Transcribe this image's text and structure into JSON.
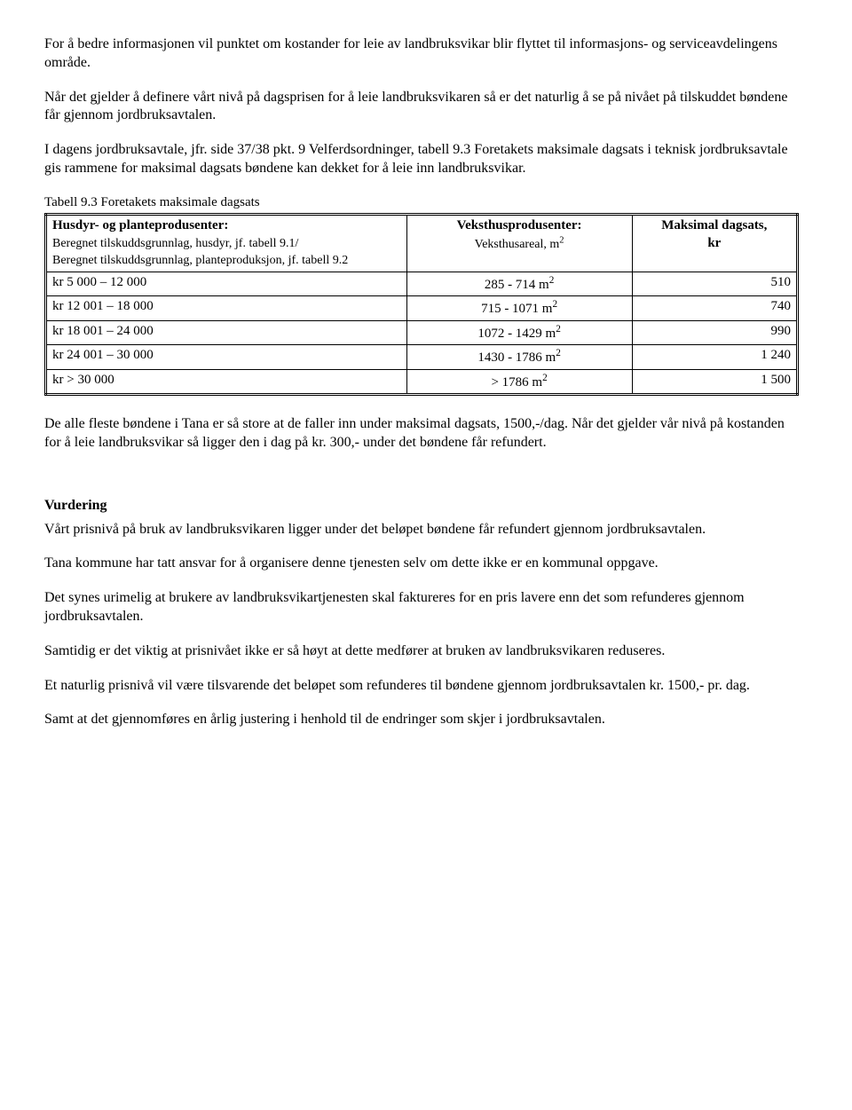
{
  "paragraphs": {
    "p1": "For å bedre informasjonen vil punktet om kostander for leie av landbruksvikar blir flyttet til informasjons- og serviceavdelingens område.",
    "p2": "Når det gjelder å definere vårt nivå på dagsprisen for å leie landbruksvikaren så er det naturlig å se på nivået på tilskuddet bøndene får gjennom jordbruksavtalen.",
    "p3": "I dagens jordbruksavtale, jfr. side 37/38  pkt. 9 Velferdsordninger, tabell 9.3 Foretakets maksimale  dagsats i  teknisk jordbruksavtale gis rammene for maksimal dagsats bøndene kan dekket for å leie inn landbruksvikar.",
    "p4": "De alle fleste bøndene i Tana er så store at de faller inn under maksimal dagsats, 1500,-/dag. Når det gjelder vår nivå på kostanden for å leie landbruksvikar så ligger den i dag på kr. 300,- under det bøndene får refundert.",
    "vurdering_heading": "Vurdering",
    "v1": "Vårt prisnivå på bruk av landbruksvikaren ligger under det beløpet bøndene får refundert gjennom jordbruksavtalen.",
    "v2": "Tana kommune har tatt ansvar for å organisere denne tjenesten selv om dette ikke er en kommunal oppgave.",
    "v3": "Det synes urimelig at brukere av landbruksvikartjenesten skal faktureres for en pris lavere enn det som refunderes gjennom jordbruksavtalen.",
    "v4": "Samtidig er det viktig at prisnivået ikke er så høyt at dette medfører at bruken av landbruksvikaren reduseres.",
    "v5": "Et naturlig  prisnivå vil være tilsvarende det beløpet som refunderes til bøndene gjennom jordbruksavtalen kr. 1500,- pr. dag.",
    "v6": "Samt at det gjennomføres en årlig justering i henhold til de endringer som skjer i jordbruksavtalen."
  },
  "table": {
    "caption": "Tabell 9.3 Foretakets maksimale dagsats",
    "header": {
      "col1_title": "Husdyr- og planteprodusenter:",
      "col1_sub1": "Beregnet tilskuddsgrunnlag, husdyr, jf. tabell 9.1/",
      "col1_sub2": "Beregnet tilskuddsgrunnlag, planteproduksjon, jf. tabell 9.2",
      "col2_title": "Veksthusprodusenter:",
      "col2_sub_prefix": "Veksthusareal, m",
      "col2_sub_sup": "2",
      "col3_title_l1": "Maksimal dagsats,",
      "col3_title_l2": "kr"
    },
    "rows": [
      {
        "c1": "kr   5 000 – 12 000",
        "c2_a": "285 - 714 m",
        "c2_sup": "2",
        "c3": "510"
      },
      {
        "c1": "kr 12 001 – 18 000",
        "c2_a": "715 - 1071 m",
        "c2_sup": "2",
        "c3": "740"
      },
      {
        "c1": "kr 18 001 – 24 000",
        "c2_a": "1072 - 1429 m",
        "c2_sup": "2",
        "c3": "990"
      },
      {
        "c1": "kr 24 001 – 30 000",
        "c2_a": "1430 - 1786 m",
        "c2_sup": "2",
        "c3": "1 240"
      },
      {
        "c1": "kr     > 30 000",
        "c2_a": "> 1786 m",
        "c2_sup": "2",
        "c3": "1 500"
      }
    ]
  }
}
